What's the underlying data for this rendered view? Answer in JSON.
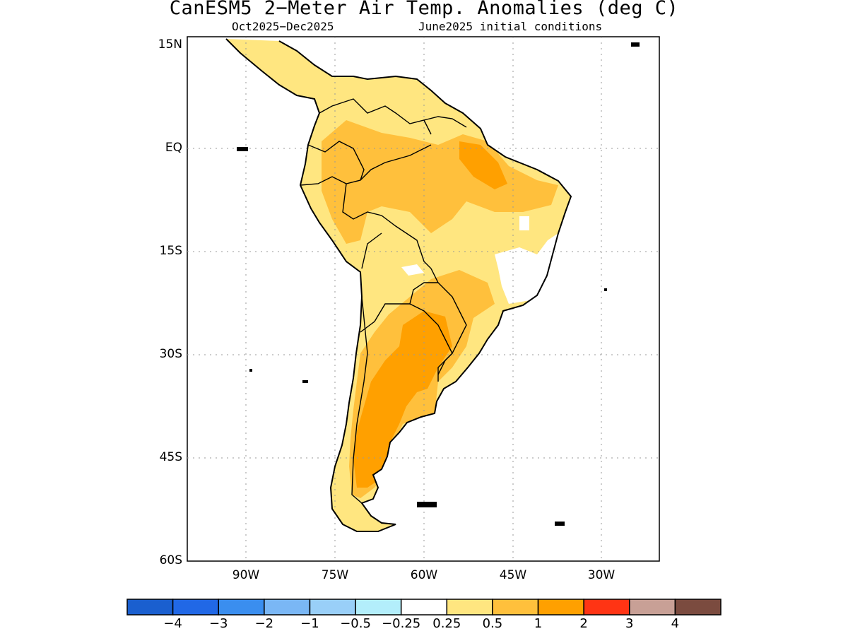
{
  "title": "CanESM5 2−Meter Air Temp. Anomalies (deg C)",
  "subtitle_left": "Oct2025−Dec2025",
  "subtitle_right": "June2025 initial conditions",
  "map": {
    "region": "South America",
    "projection": "cylindrical equidistant",
    "lon_range": [
      -100,
      -20
    ],
    "lat_range": [
      -60,
      15
    ],
    "grid": "dotted",
    "lat_ticks": [
      "15N",
      "EQ",
      "15S",
      "30S",
      "45S",
      "60S"
    ],
    "lon_ticks": [
      "90W",
      "75W",
      "60W",
      "45W",
      "30W"
    ]
  },
  "colorbar": {
    "labels": [
      "−4",
      "−3",
      "−2",
      "−1",
      "−0.5",
      "−0.25",
      "0.25",
      "0.5",
      "1",
      "2",
      "3",
      "4"
    ],
    "colors": [
      "#1a5fcf",
      "#2168e6",
      "#3a8eef",
      "#7ab7f5",
      "#99cff8",
      "#b3eefb",
      "#ffffff",
      "#ffe680",
      "#ffc03c",
      "#ffa000",
      "#ff3414",
      "#c8a096",
      "#7b4b3f"
    ]
  },
  "anomaly_classes": {
    "0.25_to_0.5": "#ffe680",
    "0.5_to_1": "#ffc03c",
    "1_to_2": "#ffa000"
  }
}
